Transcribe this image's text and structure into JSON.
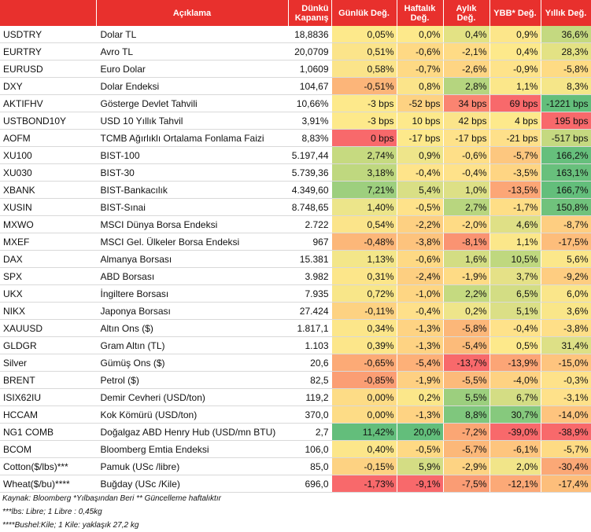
{
  "headers": [
    "",
    "Açıklama",
    "Dünkü Kapanış",
    "Günlük Değ.",
    "Haftalık Değ.",
    "Aylık Değ.",
    "YBB* Değ.",
    "Yıllık Değ."
  ],
  "rows": [
    {
      "code": "USDTRY",
      "desc": "Dolar TL",
      "close": "18,8836",
      "d": "0,05%",
      "w": "0,0%",
      "m": "0,4%",
      "ytd": "0,9%",
      "y": "36,6%",
      "colors": [
        "#fde98b",
        "#fde98b",
        "#e3e284",
        "#fce68a",
        "#c4d980"
      ]
    },
    {
      "code": "EURTRY",
      "desc": "Avro TL",
      "close": "20,0709",
      "d": "0,51%",
      "w": "-0,6%",
      "m": "-2,1%",
      "ytd": "0,4%",
      "y": "28,3%",
      "colors": [
        "#fbe48a",
        "#fed984",
        "#fedb85",
        "#fde98b",
        "#e3e284"
      ]
    },
    {
      "code": "EURUSD",
      "desc": "Euro Dolar",
      "close": "1,0609",
      "d": "0,58%",
      "w": "-0,7%",
      "m": "-2,6%",
      "ytd": "-0,9%",
      "y": "-5,8%",
      "colors": [
        "#fbe48a",
        "#fed984",
        "#fed583",
        "#fee38a",
        "#fedb84"
      ]
    },
    {
      "code": "DXY",
      "desc": "Dolar Endeksi",
      "close": "104,67",
      "d": "-0,51%",
      "w": "0,8%",
      "m": "2,8%",
      "ytd": "1,1%",
      "y": "8,3%",
      "colors": [
        "#fcb579",
        "#fbe48a",
        "#b5d57f",
        "#fbe78a",
        "#f5e689"
      ]
    },
    {
      "code": "AKTIFHV",
      "desc": "Gösterge Devlet Tahvili",
      "close": "10,66%",
      "d": "-3 bps",
      "w": "-52 bps",
      "m": "34 bps",
      "ytd": "69 bps",
      "y": "-1221 bps",
      "colors": [
        "#fde98b",
        "#fdd282",
        "#fa8471",
        "#f8696b",
        "#63be7b"
      ]
    },
    {
      "code": "USTBOND10Y",
      "desc": "USD 10 Yıllık Tahvil",
      "close": "3,91%",
      "d": "-3 bps",
      "w": "10 bps",
      "m": "42 bps",
      "ytd": "4 bps",
      "y": "195 bps",
      "colors": [
        "#fde98b",
        "#fde98b",
        "#fbe48a",
        "#fde98b",
        "#f8696b"
      ]
    },
    {
      "code": "AOFM",
      "desc": "TCMB Ağırlıklı Ortalama Fonlama Faizi",
      "close": "8,83%",
      "d": "0 bps",
      "w": "-17 bps",
      "m": "-17 bps",
      "ytd": "-21 bps",
      "y": "-517 bps",
      "colors": [
        "#f8696b",
        "#fde98b",
        "#fee28a",
        "#fee08a",
        "#c5d980"
      ]
    },
    {
      "code": "XU100",
      "desc": "BIST-100",
      "close": "5.197,44",
      "d": "2,74%",
      "w": "0,9%",
      "m": "-0,6%",
      "ytd": "-5,7%",
      "y": "166,2%",
      "colors": [
        "#c6da80",
        "#eee58a",
        "#fedf88",
        "#fdc77f",
        "#66bf7c"
      ]
    },
    {
      "code": "XU030",
      "desc": "BIST-30",
      "close": "5.739,36",
      "d": "3,18%",
      "w": "-0,4%",
      "m": "-0,4%",
      "ytd": "-3,5%",
      "y": "163,1%",
      "colors": [
        "#bfd87f",
        "#fee48a",
        "#fee28a",
        "#fed583",
        "#68c07c"
      ]
    },
    {
      "code": "XBANK",
      "desc": "BIST-Bankacılık",
      "close": "4.349,60",
      "d": "7,21%",
      "w": "5,4%",
      "m": "1,0%",
      "ytd": "-13,5%",
      "y": "166,7%",
      "colors": [
        "#9dcf7e",
        "#d9df85",
        "#dde086",
        "#fca676",
        "#63be7b"
      ]
    },
    {
      "code": "XUSIN",
      "desc": "BIST-Sınai",
      "close": "8.748,65",
      "d": "1,40%",
      "w": "-0,5%",
      "m": "2,7%",
      "ytd": "-1,7%",
      "y": "150,8%",
      "colors": [
        "#ece58a",
        "#fee28a",
        "#b8d67f",
        "#fede86",
        "#70c27c"
      ]
    },
    {
      "code": "MXWO",
      "desc": "MSCI Dünya Borsa Endeksi",
      "close": "2.722",
      "d": "0,54%",
      "w": "-2,2%",
      "m": "-2,0%",
      "ytd": "4,6%",
      "y": "-8,7%",
      "colors": [
        "#fbe48a",
        "#fdd082",
        "#fedb85",
        "#dfe086",
        "#fece81"
      ]
    },
    {
      "code": "MXEF",
      "desc": "MSCI Gel. Ülkeler Borsa Endeksi",
      "close": "967",
      "d": "-0,48%",
      "w": "-3,8%",
      "m": "-8,1%",
      "ytd": "1,1%",
      "y": "-17,5%",
      "colors": [
        "#fcb779",
        "#fdc37d",
        "#fa9372",
        "#fbe78a",
        "#fdbd7b"
      ]
    },
    {
      "code": "DAX",
      "desc": "Almanya Borsası",
      "close": "15.381",
      "d": "1,13%",
      "w": "-0,6%",
      "m": "1,6%",
      "ytd": "10,5%",
      "y": "5,6%",
      "colors": [
        "#f3e689",
        "#fed984",
        "#d3dd83",
        "#bfd87f",
        "#fbe78a"
      ]
    },
    {
      "code": "SPX",
      "desc": "ABD Borsası",
      "close": "3.982",
      "d": "0,31%",
      "w": "-2,4%",
      "m": "-1,9%",
      "ytd": "3,7%",
      "y": "-9,2%",
      "colors": [
        "#fce68a",
        "#fdcf81",
        "#fedb85",
        "#e5e187",
        "#fecd81"
      ]
    },
    {
      "code": "UKX",
      "desc": "İngiltere Borsası",
      "close": "7.935",
      "d": "0,72%",
      "w": "-1,0%",
      "m": "2,2%",
      "ytd": "6,5%",
      "y": "6,0%",
      "colors": [
        "#f8e689",
        "#fed683",
        "#c5da80",
        "#d3dd84",
        "#fae68a"
      ]
    },
    {
      "code": "NIKX",
      "desc": "Japonya Borsası",
      "close": "27.424",
      "d": "-0,11%",
      "w": "-0,4%",
      "m": "0,2%",
      "ytd": "5,1%",
      "y": "3,6%",
      "colors": [
        "#fdd282",
        "#fee08a",
        "#eee58a",
        "#dbdf86",
        "#f9e689"
      ]
    },
    {
      "code": "XAUUSD",
      "desc": "Altın Ons ($)",
      "close": "1.817,1",
      "d": "0,34%",
      "w": "-1,3%",
      "m": "-5,8%",
      "ytd": "-0,4%",
      "y": "-3,8%",
      "colors": [
        "#fce68a",
        "#fed383",
        "#fcb779",
        "#fee28a",
        "#fedf88"
      ]
    },
    {
      "code": "GLDGR",
      "desc": "Gram Altın (TL)",
      "close": "1.103",
      "d": "0,39%",
      "w": "-1,3%",
      "m": "-5,4%",
      "ytd": "0,5%",
      "y": "31,4%",
      "colors": [
        "#fce68a",
        "#fed383",
        "#fcbb7a",
        "#fde98b",
        "#dde086"
      ]
    },
    {
      "code": "Silver",
      "desc": "Gümüş Ons ($)",
      "close": "20,6",
      "d": "-0,65%",
      "w": "-5,4%",
      "m": "-13,7%",
      "ytd": "-13,9%",
      "y": "-15,0%",
      "colors": [
        "#fcaa76",
        "#fdb078",
        "#f8696b",
        "#fca576",
        "#fec47e"
      ]
    },
    {
      "code": "BRENT",
      "desc": "Petrol ($)",
      "close": "82,5",
      "d": "-0,85%",
      "w": "-1,9%",
      "m": "-5,5%",
      "ytd": "-4,0%",
      "y": "-0,3%",
      "colors": [
        "#fb9e74",
        "#fed082",
        "#fcba7a",
        "#fed282",
        "#fee28a"
      ]
    },
    {
      "code": "ISIX62IU",
      "desc": "Demir Cevheri (USD/ton)",
      "close": "119,2",
      "d": "0,00%",
      "w": "0,2%",
      "m": "5,5%",
      "ytd": "6,7%",
      "y": "-3,1%",
      "colors": [
        "#fddc86",
        "#fbe78a",
        "#9ccf7e",
        "#d4dd84",
        "#fee18a"
      ]
    },
    {
      "code": "HCCAM",
      "desc": "Kok Kömürü (USD/ton)",
      "close": "370,0",
      "d": "0,00%",
      "w": "-1,3%",
      "m": "8,8%",
      "ytd": "30,7%",
      "y": "-14,0%",
      "colors": [
        "#fddc86",
        "#fed383",
        "#7fc77d",
        "#86c97d",
        "#fec47e"
      ]
    },
    {
      "code": "NG1 COMB",
      "desc": "Doğalgaz ABD Henry Hub (USD/mn BTU)",
      "close": "2,7",
      "d": "11,42%",
      "w": "20,0%",
      "m": "-7,2%",
      "ytd": "-39,0%",
      "y": "-38,9%",
      "colors": [
        "#63be7b",
        "#63be7b",
        "#fba674",
        "#f8696b",
        "#f8696b"
      ]
    },
    {
      "code": "BCOM",
      "desc": "Bloomberg Emtia Endeksi",
      "close": "106,0",
      "d": "0,40%",
      "w": "-0,5%",
      "m": "-5,7%",
      "ytd": "-6,1%",
      "y": "-5,7%",
      "colors": [
        "#fce68a",
        "#fed984",
        "#fcb879",
        "#fec57e",
        "#fedb84"
      ]
    },
    {
      "code": "Cotton($/lbs)***",
      "desc": "Pamuk (USc /libre)",
      "close": "85,0",
      "d": "-0,15%",
      "w": "5,9%",
      "m": "-2,9%",
      "ytd": "2,0%",
      "y": "-30,4%",
      "colors": [
        "#fdd282",
        "#d4dd84",
        "#fdd383",
        "#f1e589",
        "#fba876"
      ]
    },
    {
      "code": "Wheat($/bu)****",
      "desc": "Buğday (USc /Kile)",
      "close": "696,0",
      "d": "-1,73%",
      "w": "-9,1%",
      "m": "-7,5%",
      "ytd": "-12,1%",
      "y": "-17,4%",
      "colors": [
        "#f8696b",
        "#f8696b",
        "#fa9c74",
        "#fca977",
        "#fdbe7b"
      ]
    }
  ],
  "notes": [
    "Kaynak: Bloomberg *Yılbaşından Beri  ** Güncelleme haftalıktır",
    "***lbs: Libre; 1 Libre : 0,45kg",
    "****Bushel:Kile; 1 Kile: yaklaşık 27,2 kg"
  ]
}
